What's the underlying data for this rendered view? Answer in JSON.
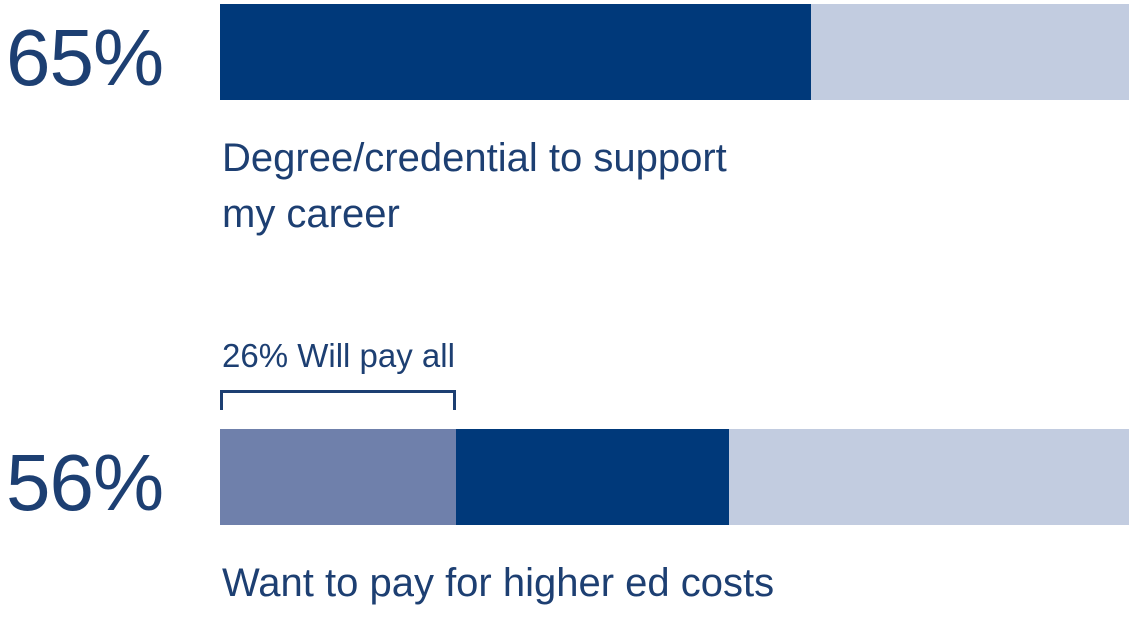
{
  "colors": {
    "text": "#1d3f72",
    "primary": "#00397a",
    "secondary": "#6f80ab",
    "track": "#c2cce0"
  },
  "chart_data": [
    {
      "type": "bar",
      "orientation": "horizontal",
      "stat_label": "65%",
      "caption_lines": [
        "Degree/credential to support",
        "my career"
      ],
      "series": [
        {
          "value": 65
        }
      ],
      "ylim": [
        0,
        100
      ]
    },
    {
      "type": "bar",
      "orientation": "horizontal",
      "stacked": true,
      "stat_label": "56%",
      "caption_lines": [
        "Want to pay for higher ed costs"
      ],
      "annotation": "26% Will pay all",
      "series": [
        {
          "name": "Will pay all",
          "value": 26
        },
        {
          "value": 30
        }
      ],
      "ylim": [
        0,
        100
      ]
    }
  ]
}
